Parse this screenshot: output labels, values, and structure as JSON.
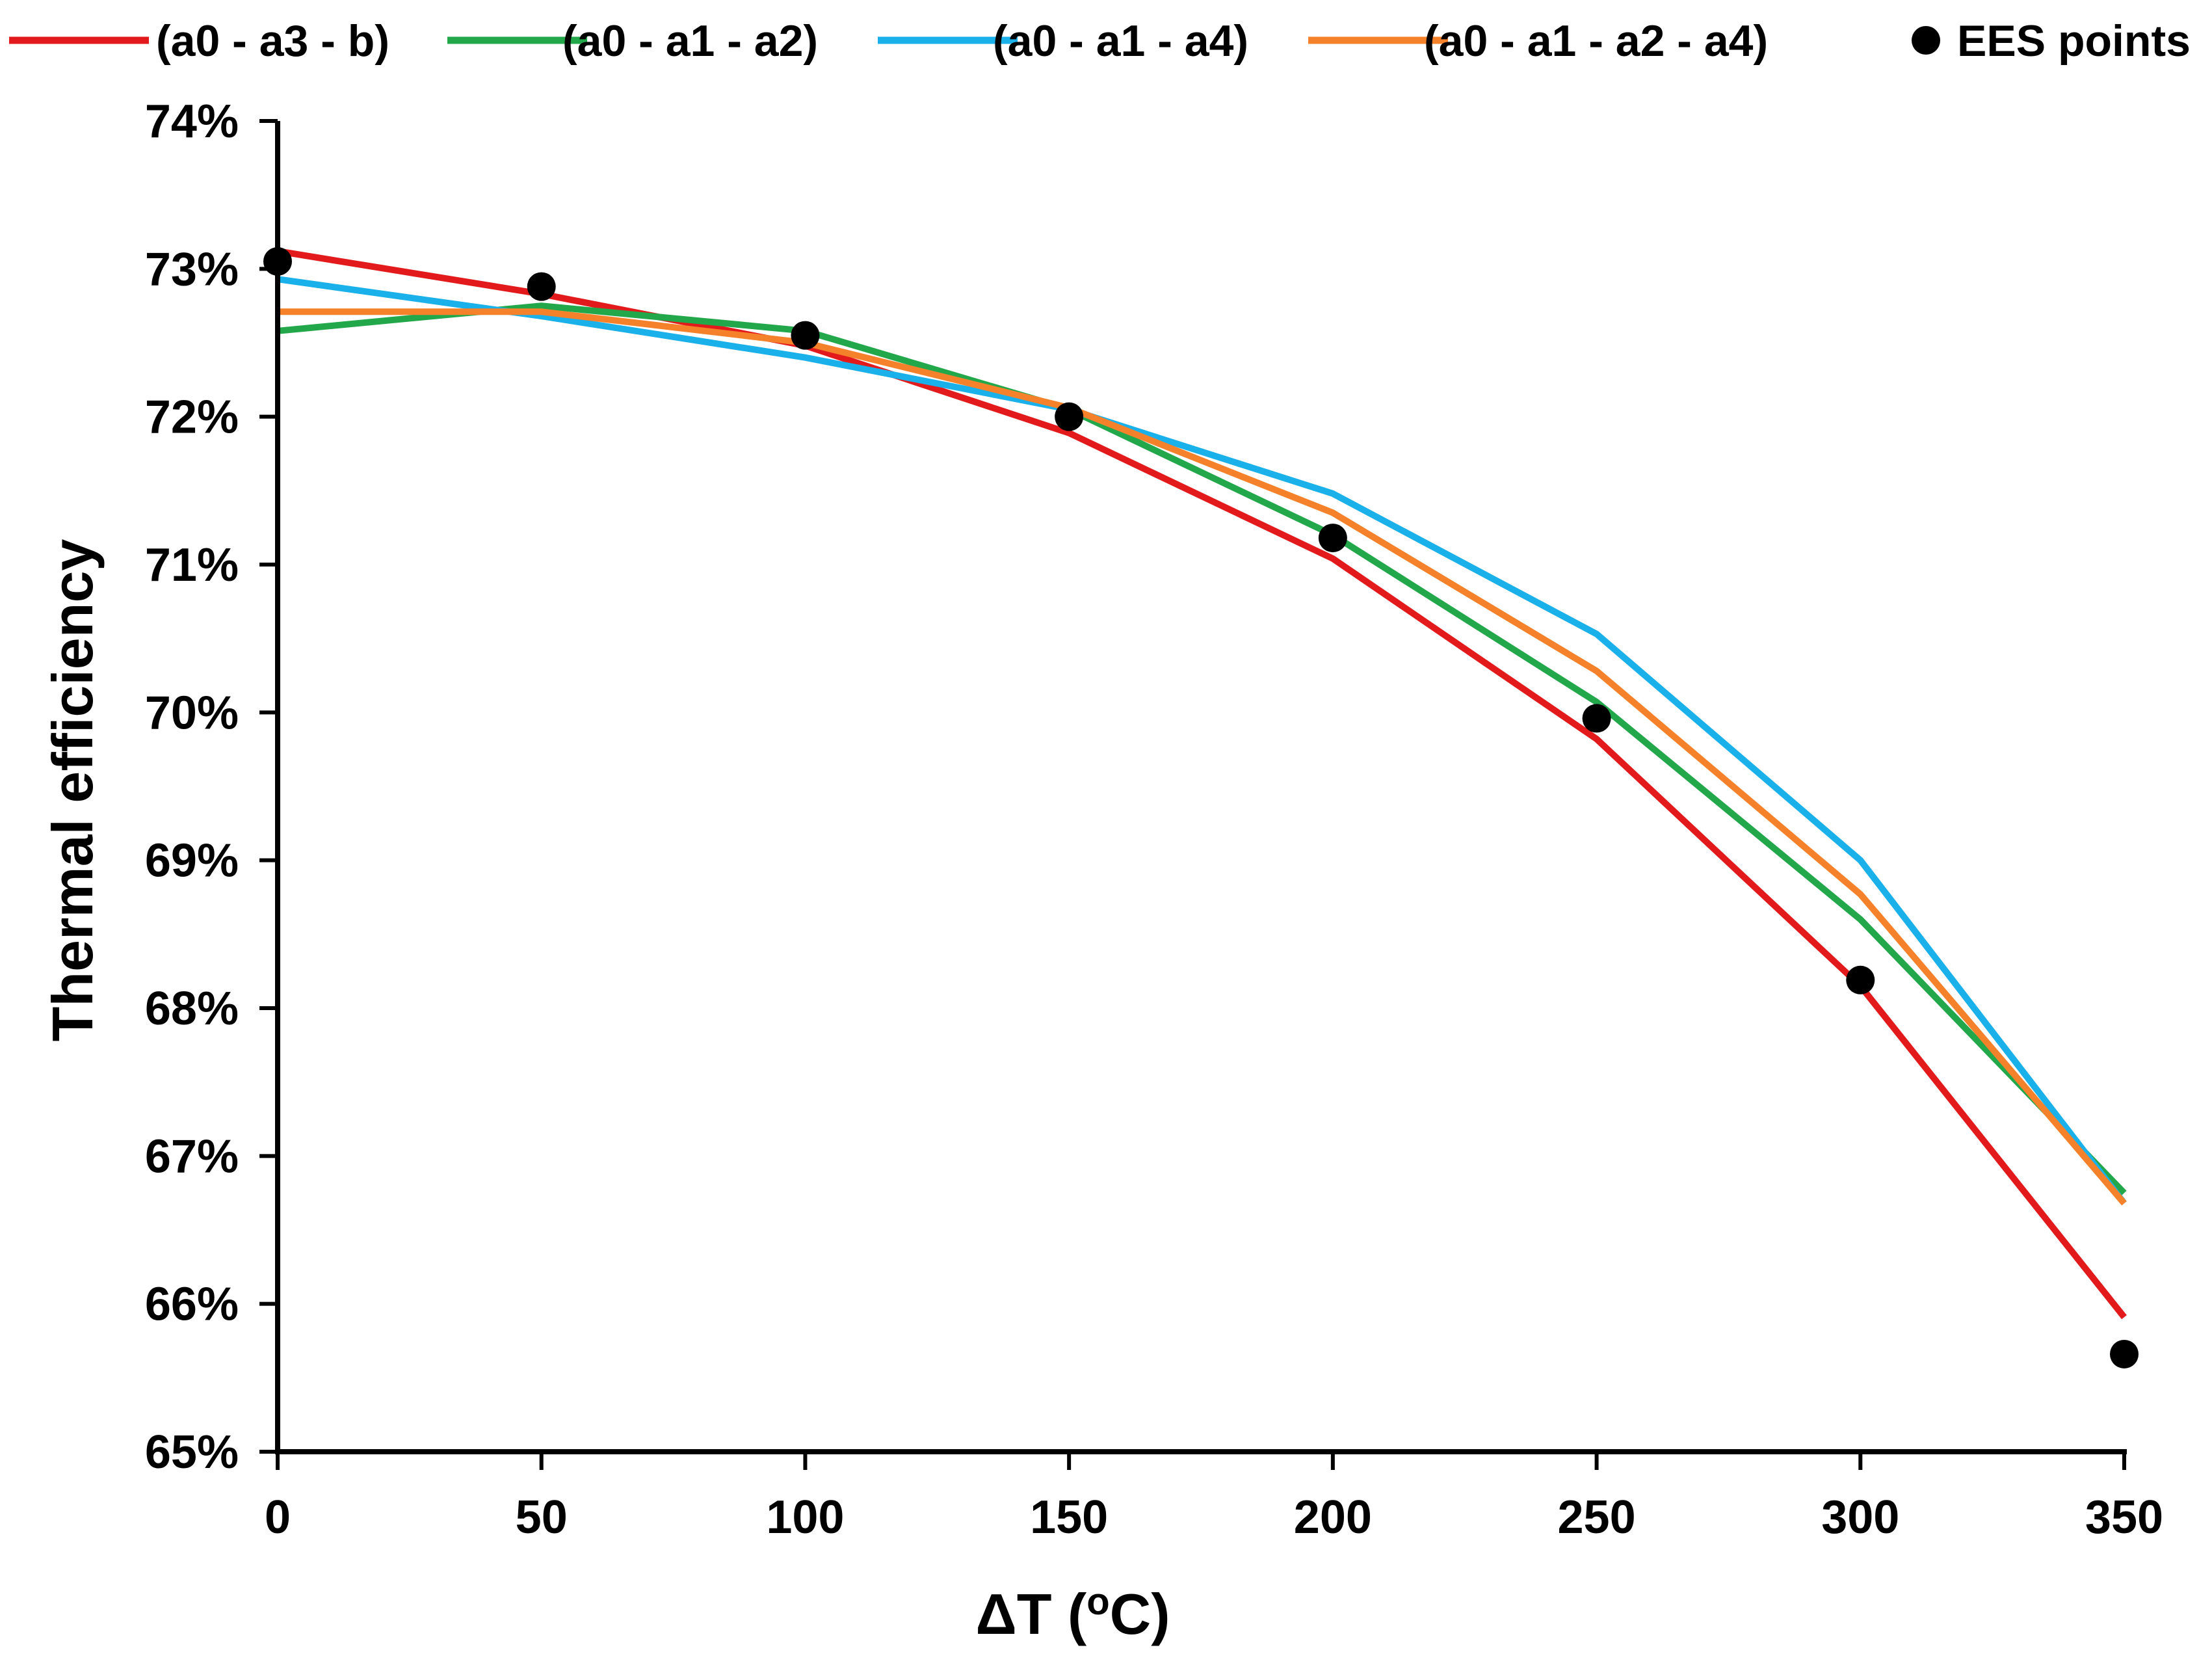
{
  "chart_data": {
    "type": "line",
    "title": "",
    "xlabel": "ΔT (",
    "xlabel_super": "o",
    "xlabel_unit": "C)",
    "ylabel": "Thermal efficiency",
    "xlim": [
      0,
      350
    ],
    "ylim": [
      0.65,
      0.74
    ],
    "x": [
      0,
      50,
      100,
      150,
      200,
      250,
      300,
      350
    ],
    "x_tick_labels": [
      "0",
      "50",
      "100",
      "150",
      "200",
      "250",
      "300",
      "350"
    ],
    "y_ticks": [
      0.65,
      0.66,
      0.67,
      0.68,
      0.69,
      0.7,
      0.71,
      0.72,
      0.73,
      0.74
    ],
    "y_tick_labels": [
      "65%",
      "66%",
      "67%",
      "68%",
      "69%",
      "70%",
      "71%",
      "72%",
      "73%",
      "74%"
    ],
    "grid": false,
    "legend_position": "top",
    "series": [
      {
        "name": "(a0 - a3 - b)",
        "style": "line",
        "color": "#e31a1c",
        "values": [
          0.7312,
          0.7283,
          0.7248,
          0.7189,
          0.7104,
          0.6982,
          0.6815,
          0.6591
        ]
      },
      {
        "name": "(a0 - a1 - a2)",
        "style": "line",
        "color": "#22a84a",
        "values": [
          0.7258,
          0.7275,
          0.7258,
          0.7205,
          0.712,
          0.7007,
          0.686,
          0.6675
        ]
      },
      {
        "name": "(a0 - a1 - a4)",
        "style": "line",
        "color": "#1ab0ea",
        "values": [
          0.7293,
          0.7268,
          0.724,
          0.7205,
          0.7148,
          0.7053,
          0.69,
          0.6668
        ]
      },
      {
        "name": "(a0 - a1 - a2 - a4)",
        "style": "line",
        "color": "#f5822a",
        "values": [
          0.7271,
          0.7271,
          0.725,
          0.7206,
          0.7135,
          0.7028,
          0.6877,
          0.6668
        ]
      },
      {
        "name": "EES points",
        "style": "marker",
        "color": "#000000",
        "values": [
          0.7305,
          0.7288,
          0.7255,
          0.72,
          0.7118,
          0.6996,
          0.6819,
          0.6566
        ]
      }
    ]
  }
}
